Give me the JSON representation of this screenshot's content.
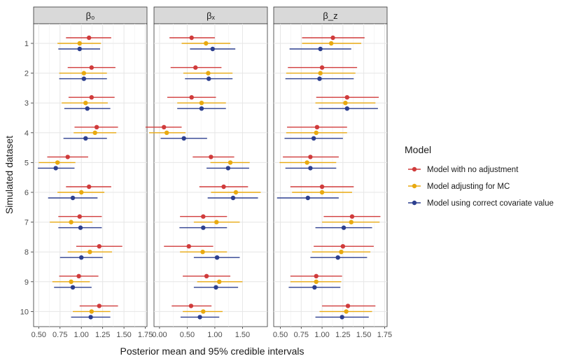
{
  "chart_data": {
    "type": "scatter",
    "subtype": "point-range (forest plot), faceted",
    "xlabel": "Posterior mean and 95% credible intervals",
    "ylabel": "Simulated dataset",
    "datasets": [
      "1",
      "2",
      "3",
      "4",
      "5",
      "6",
      "7",
      "8",
      "9",
      "10"
    ],
    "legend": {
      "title": "Model",
      "position": "right",
      "entries": [
        {
          "name": "Model with no adjustment",
          "color": "#d03b3b"
        },
        {
          "name": "Model adjusting for MC",
          "color": "#e8a910"
        },
        {
          "name": "Model using correct covariate value",
          "color": "#2c3f8f"
        }
      ]
    },
    "panels": [
      {
        "title": "β₀",
        "xlim": [
          0.44,
          1.77
        ],
        "xticks": [
          0.5,
          0.75,
          1.0,
          1.25,
          1.5,
          1.75
        ],
        "xtick_labels": [
          "0.50",
          "0.75",
          "1.00",
          "1.25",
          "1.50",
          "1.75"
        ],
        "series": [
          {
            "name": "Model with no adjustment",
            "mean": [
              1.09,
              1.12,
              1.12,
              1.18,
              0.84,
              1.09,
              0.98,
              1.21,
              0.97,
              1.21
            ],
            "lower": [
              0.82,
              0.84,
              0.85,
              0.92,
              0.6,
              0.82,
              0.73,
              0.94,
              0.74,
              0.98
            ],
            "upper": [
              1.35,
              1.4,
              1.39,
              1.43,
              1.08,
              1.35,
              1.24,
              1.48,
              1.2,
              1.43
            ]
          },
          {
            "name": "Model adjusting for MC",
            "mean": [
              0.98,
              1.03,
              1.05,
              1.16,
              0.72,
              1.0,
              0.88,
              1.1,
              0.88,
              1.12
            ],
            "lower": [
              0.72,
              0.74,
              0.77,
              0.91,
              0.5,
              0.72,
              0.63,
              0.84,
              0.66,
              0.9
            ],
            "upper": [
              1.23,
              1.3,
              1.31,
              1.41,
              0.93,
              1.27,
              1.13,
              1.36,
              1.1,
              1.34
            ]
          },
          {
            "name": "Model using correct covariate value",
            "mean": [
              0.98,
              1.03,
              1.07,
              1.05,
              0.7,
              0.9,
              0.99,
              1.0,
              0.9,
              1.11
            ],
            "lower": [
              0.73,
              0.74,
              0.8,
              0.79,
              0.49,
              0.61,
              0.73,
              0.75,
              0.68,
              0.88
            ],
            "upper": [
              1.22,
              1.3,
              1.34,
              1.3,
              0.92,
              1.19,
              1.24,
              1.25,
              1.12,
              1.34
            ]
          }
        ]
      },
      {
        "title": "βₓ",
        "xlim": [
          -0.1,
          1.95
        ],
        "xticks": [
          0.0,
          0.5,
          1.0,
          1.5
        ],
        "xtick_labels": [
          "0.00",
          "0.50",
          "1.00",
          "1.50"
        ],
        "series": [
          {
            "name": "Model with no adjustment",
            "mean": [
              0.58,
              0.65,
              0.58,
              0.08,
              0.93,
              1.16,
              0.79,
              0.53,
              0.85,
              0.57
            ],
            "lower": [
              0.18,
              0.2,
              0.14,
              -0.25,
              0.6,
              0.72,
              0.37,
              0.08,
              0.42,
              0.22
            ],
            "upper": [
              1.0,
              1.12,
              1.02,
              0.4,
              1.35,
              1.6,
              1.22,
              0.97,
              1.28,
              0.94
            ]
          },
          {
            "name": "Model adjusting for MC",
            "mean": [
              0.84,
              0.88,
              0.76,
              0.13,
              1.28,
              1.38,
              1.03,
              0.78,
              1.08,
              0.79
            ],
            "lower": [
              0.4,
              0.43,
              0.32,
              -0.19,
              0.92,
              0.93,
              0.62,
              0.37,
              0.68,
              0.42
            ],
            "upper": [
              1.28,
              1.32,
              1.2,
              0.47,
              1.63,
              1.83,
              1.45,
              1.22,
              1.5,
              1.14
            ]
          },
          {
            "name": "Model using correct covariate value",
            "mean": [
              0.96,
              0.89,
              0.76,
              0.44,
              1.24,
              1.33,
              0.79,
              1.04,
              1.02,
              0.73
            ],
            "lower": [
              0.55,
              0.46,
              0.32,
              0.02,
              0.85,
              0.87,
              0.36,
              0.62,
              0.62,
              0.38
            ],
            "upper": [
              1.37,
              1.32,
              1.2,
              0.86,
              1.62,
              1.78,
              1.22,
              1.45,
              1.42,
              1.08
            ]
          }
        ]
      },
      {
        "title": "β_z",
        "xlim": [
          0.42,
          1.78
        ],
        "xticks": [
          0.5,
          0.75,
          1.0,
          1.25,
          1.5,
          1.75
        ],
        "xtick_labels": [
          "0.50",
          "0.75",
          "1.00",
          "1.25",
          "1.50",
          "1.75"
        ],
        "series": [
          {
            "name": "Model with no adjustment",
            "mean": [
              1.13,
              1.0,
              1.3,
              0.94,
              0.86,
              1.0,
              1.36,
              1.25,
              0.93,
              1.31
            ],
            "lower": [
              0.76,
              0.59,
              0.93,
              0.58,
              0.53,
              0.62,
              1.02,
              0.9,
              0.62,
              1.0
            ],
            "upper": [
              1.51,
              1.42,
              1.68,
              1.3,
              1.2,
              1.38,
              1.7,
              1.62,
              1.24,
              1.64
            ]
          },
          {
            "name": "Model adjusting for MC",
            "mean": [
              1.11,
              0.98,
              1.28,
              0.93,
              0.82,
              1.0,
              1.35,
              1.23,
              0.93,
              1.29
            ],
            "lower": [
              0.76,
              0.57,
              0.92,
              0.57,
              0.49,
              0.64,
              1.0,
              0.88,
              0.62,
              0.97
            ],
            "upper": [
              1.47,
              1.4,
              1.64,
              1.3,
              1.17,
              1.36,
              1.69,
              1.58,
              1.23,
              1.6
            ]
          },
          {
            "name": "Model using correct covariate value",
            "mean": [
              0.98,
              0.97,
              1.3,
              0.9,
              0.86,
              0.83,
              1.26,
              1.19,
              0.91,
              1.24
            ],
            "lower": [
              0.61,
              0.56,
              0.96,
              0.55,
              0.56,
              0.46,
              0.92,
              0.86,
              0.6,
              0.92
            ],
            "upper": [
              1.35,
              1.38,
              1.67,
              1.25,
              1.17,
              1.2,
              1.6,
              1.54,
              1.22,
              1.56
            ]
          }
        ]
      }
    ]
  }
}
